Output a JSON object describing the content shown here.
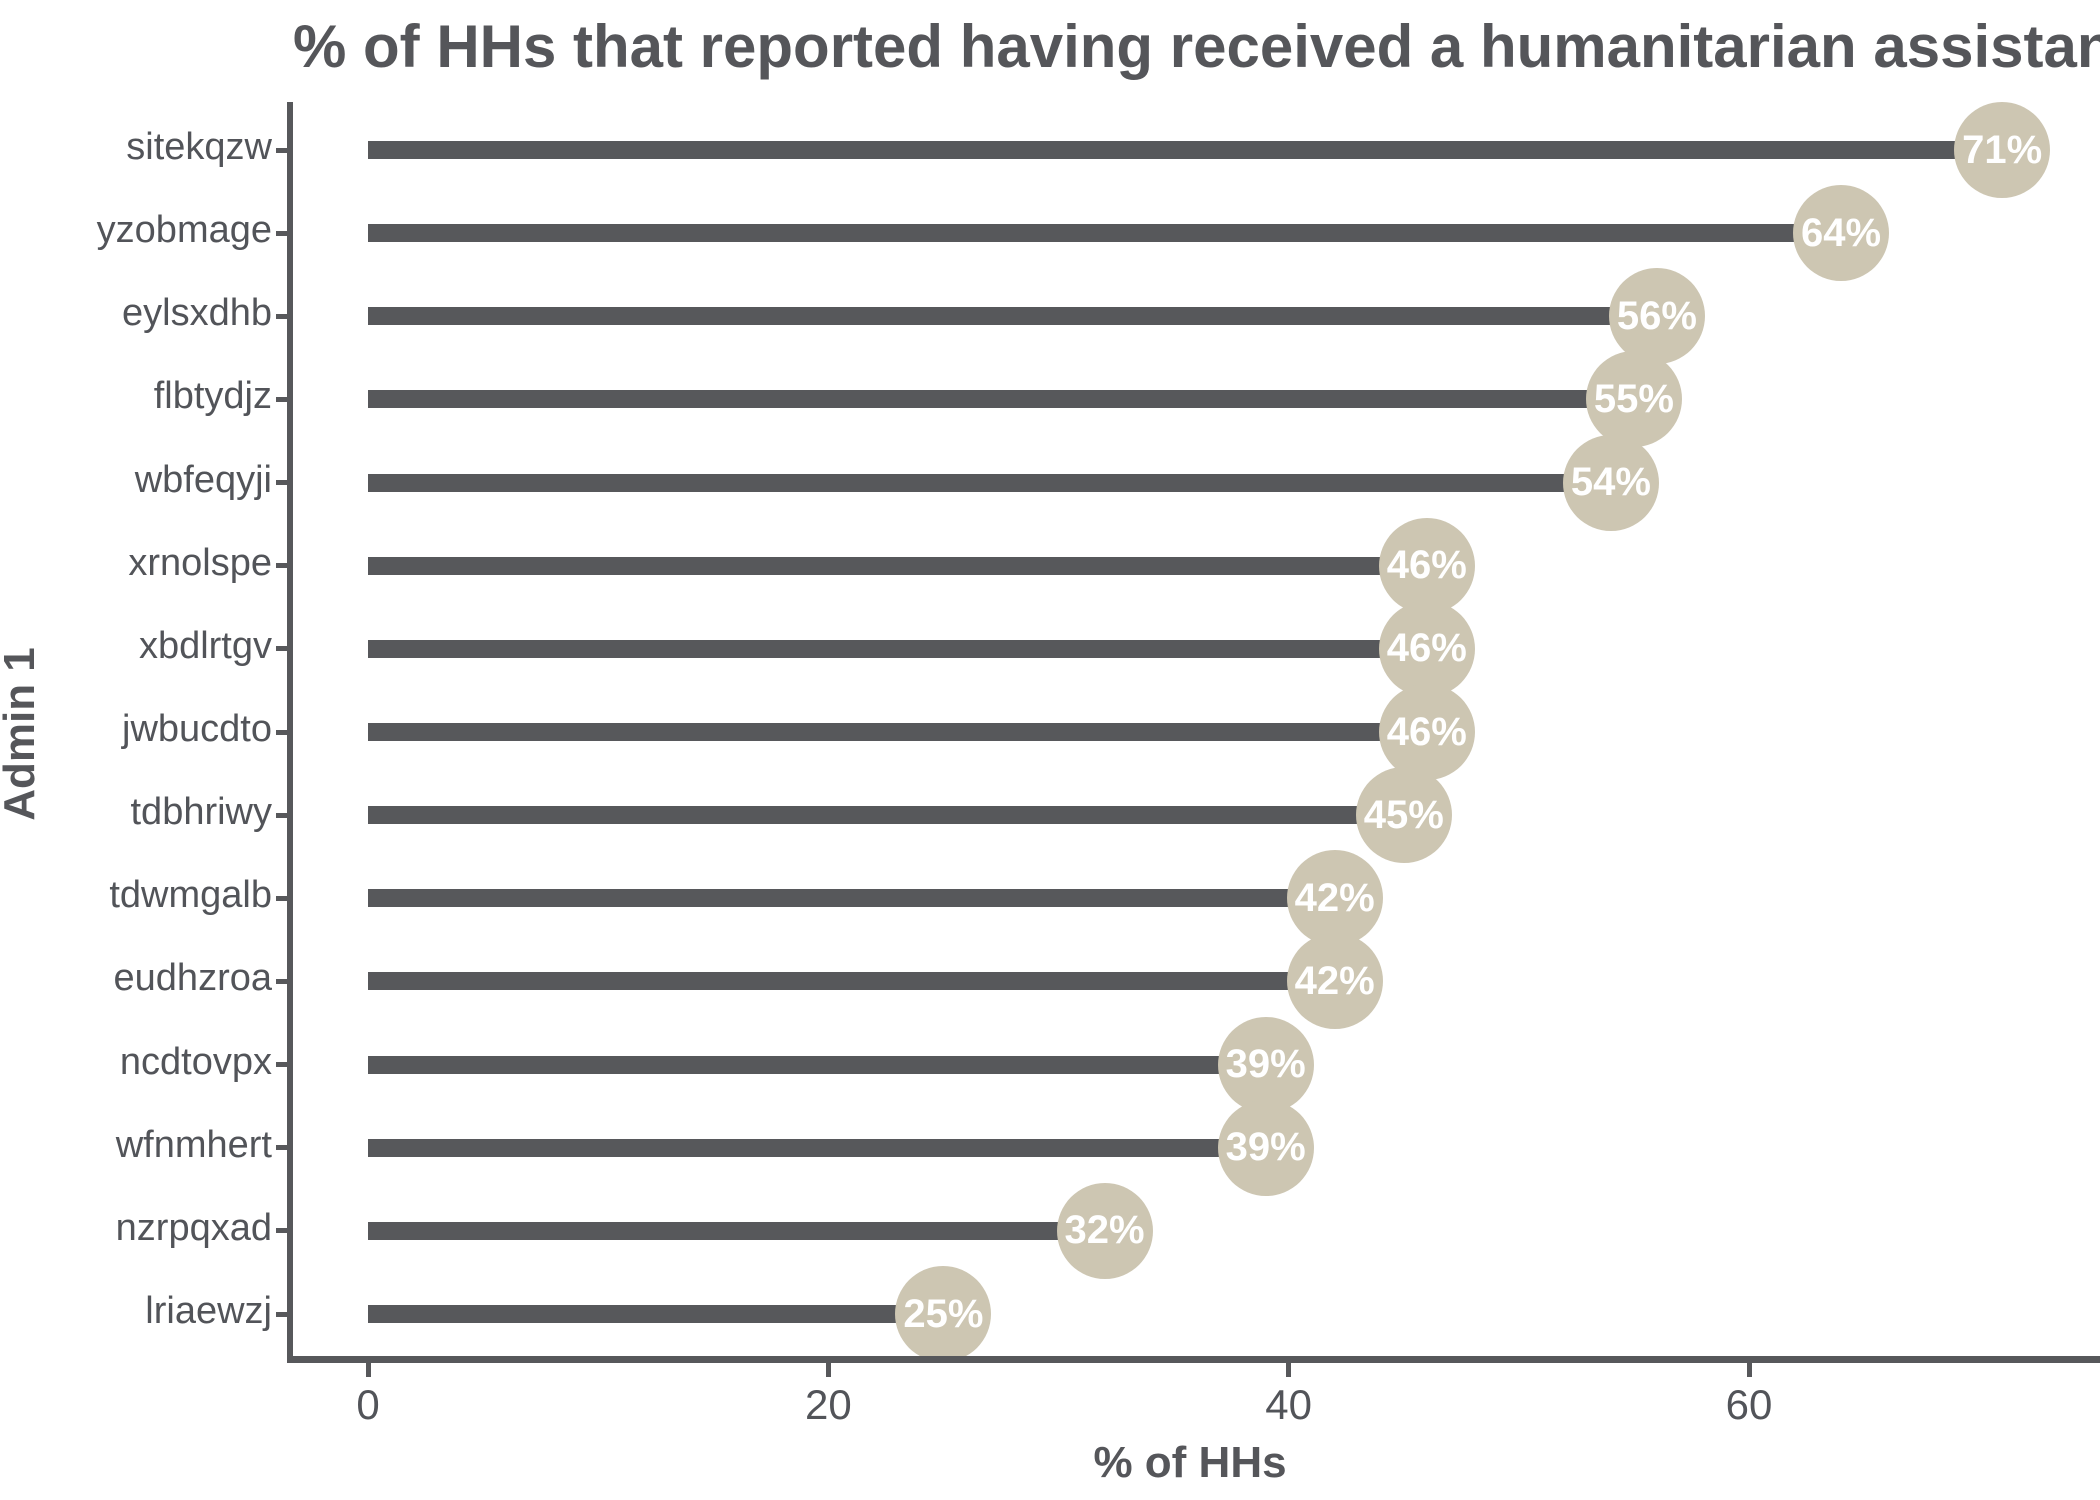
{
  "chart_data": {
    "type": "bar",
    "subtype": "lollipop",
    "orientation": "horizontal",
    "title": "% of HHs that reported having received a humanitarian assistance",
    "xlabel": "% of HHs",
    "ylabel": "Admin 1",
    "categories": [
      "sitekqzw",
      "yzobmage",
      "eylsxdhb",
      "flbtydjz",
      "wbfeqyji",
      "xrnolspe",
      "xbdlrtgv",
      "jwbucdto",
      "tdbhriwy",
      "tdwmgalb",
      "eudhzroa",
      "ncdtovpx",
      "wfnmhert",
      "nzrpqxad",
      "lriaewzj"
    ],
    "values": [
      71,
      64,
      56,
      55,
      54,
      46,
      46,
      46,
      45,
      42,
      42,
      39,
      39,
      32,
      25
    ],
    "value_labels": [
      "71%",
      "64%",
      "56%",
      "55%",
      "54%",
      "46%",
      "46%",
      "46%",
      "45%",
      "42%",
      "42%",
      "39%",
      "39%",
      "32%",
      "25%"
    ],
    "xlim": [
      0,
      75
    ],
    "x_ticks": [
      0,
      20,
      40,
      60
    ],
    "x_tick_labels": [
      "0",
      "20",
      "40",
      "60"
    ],
    "grid": false,
    "legend": null,
    "colors": {
      "bar": "#57585b",
      "bubble_fill": "#cdc6b2",
      "bubble_text": "#ffffff",
      "axis_line": "#57585b",
      "tick_text": "#525459",
      "title_text": "#55565a"
    }
  }
}
